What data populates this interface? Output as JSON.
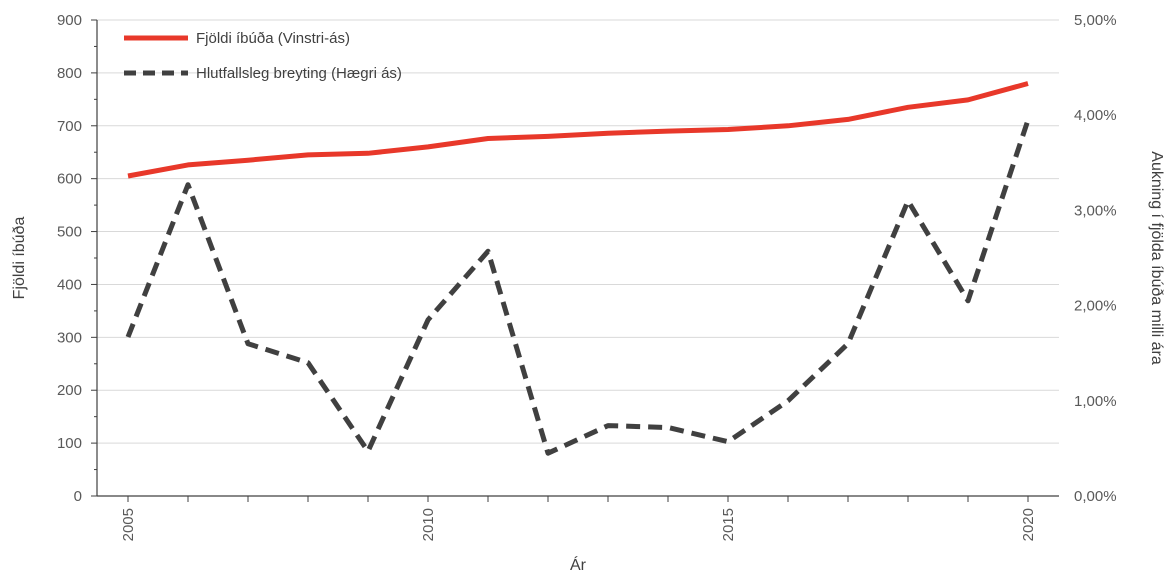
{
  "chart_data": {
    "type": "line",
    "x": [
      2005,
      2006,
      2007,
      2008,
      2009,
      2010,
      2011,
      2012,
      2013,
      2014,
      2015,
      2016,
      2017,
      2018,
      2019,
      2020
    ],
    "x_tick_labels": [
      "2005",
      "2010",
      "2015",
      "2020"
    ],
    "xlabel": "Ár",
    "ylabel_left": "Fjöldi íbúða",
    "ylabel_right": "Aukning í fjölda íbúða milli ára",
    "ylim_left": [
      0,
      900
    ],
    "yticks_left": [
      "0",
      "100",
      "200",
      "300",
      "400",
      "500",
      "600",
      "700",
      "800",
      "900"
    ],
    "ylim_right": [
      0,
      5
    ],
    "yticks_right": [
      "0,00%",
      "1,00%",
      "2,00%",
      "3,00%",
      "4,00%",
      "5,00%"
    ],
    "grid": true,
    "legend_position": "top-left",
    "series": [
      {
        "name": "Fjöldi íbúða (Vinstri-ás)",
        "axis": "left",
        "style": "solid",
        "color": "#e8382a",
        "values": [
          605,
          626,
          635,
          645,
          648,
          660,
          676,
          680,
          686,
          690,
          693,
          700,
          712,
          735,
          749,
          780
        ]
      },
      {
        "name": "Hlutfallsleg breyting (Hægri ás)",
        "axis": "right",
        "style": "dashed",
        "color": "#404040",
        "unit": "%",
        "values": [
          1.67,
          3.27,
          1.6,
          1.4,
          0.47,
          1.85,
          2.57,
          0.45,
          0.74,
          0.72,
          0.57,
          1.0,
          1.6,
          3.1,
          2.05,
          3.95
        ]
      }
    ]
  }
}
